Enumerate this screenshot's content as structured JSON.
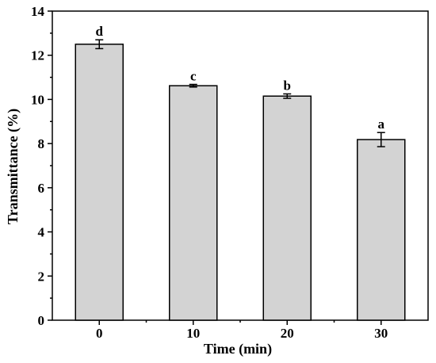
{
  "chart_data": {
    "type": "bar",
    "title": "",
    "xlabel": "Time (min)",
    "ylabel": "Transmittance (%)",
    "categories": [
      "0",
      "10",
      "20",
      "30"
    ],
    "values": [
      12.5,
      10.62,
      10.15,
      8.18
    ],
    "errors": [
      0.2,
      0.06,
      0.1,
      0.32
    ],
    "significance_labels": [
      "d",
      "c",
      "b",
      "a"
    ],
    "ylim": [
      0,
      14
    ],
    "yticks": [
      "0",
      "2",
      "4",
      "6",
      "8",
      "10",
      "12",
      "14"
    ],
    "grid": false,
    "bar_color": "#d3d3d3",
    "edge_color": "#000000"
  }
}
